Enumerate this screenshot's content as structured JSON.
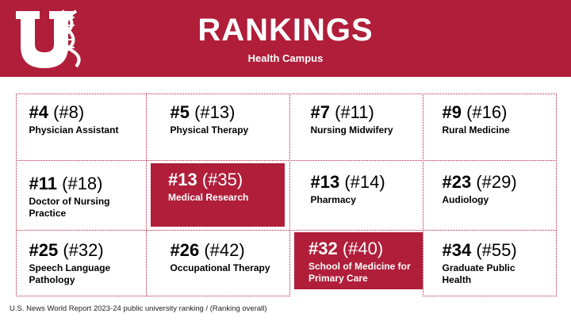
{
  "header": {
    "title": "RANKINGS",
    "subtitle": "Health Campus",
    "logo_name": "university-u-dna-logo"
  },
  "colors": {
    "brand_red": "#b01e3a",
    "white": "#ffffff"
  },
  "rankings": [
    {
      "rank": "#4",
      "overall": "(#8)",
      "program": "Physician Assistant",
      "highlight": false
    },
    {
      "rank": "#5",
      "overall": "(#13)",
      "program": "Physical Therapy",
      "highlight": false
    },
    {
      "rank": "#7",
      "overall": "(#11)",
      "program": "Nursing Midwifery",
      "highlight": false
    },
    {
      "rank": "#9",
      "overall": "(#16)",
      "program": "Rural Medicine",
      "highlight": false
    },
    {
      "rank": "#11",
      "overall": "(#18)",
      "program": "Doctor of Nursing Practice",
      "highlight": false
    },
    {
      "rank": "#13",
      "overall": "(#35)",
      "program": "Medical Research",
      "highlight": true
    },
    {
      "rank": "#13",
      "overall": "(#14)",
      "program": "Pharmacy",
      "highlight": false
    },
    {
      "rank": "#23",
      "overall": "(#29)",
      "program": "Audiology",
      "highlight": false
    },
    {
      "rank": "#25",
      "overall": "(#32)",
      "program": "Speech Language Pathology",
      "highlight": false
    },
    {
      "rank": "#26",
      "overall": "(#42)",
      "program": "Occupational Therapy",
      "highlight": false
    },
    {
      "rank": "#32",
      "overall": "(#40)",
      "program": "School of Medicine for Primary Care",
      "highlight": true
    },
    {
      "rank": "#34",
      "overall": "(#55)",
      "program": "Graduate Public Health",
      "highlight": false
    }
  ],
  "footnote": "U.S. News World Report 2023-24 public university ranking / (Ranking overall)"
}
